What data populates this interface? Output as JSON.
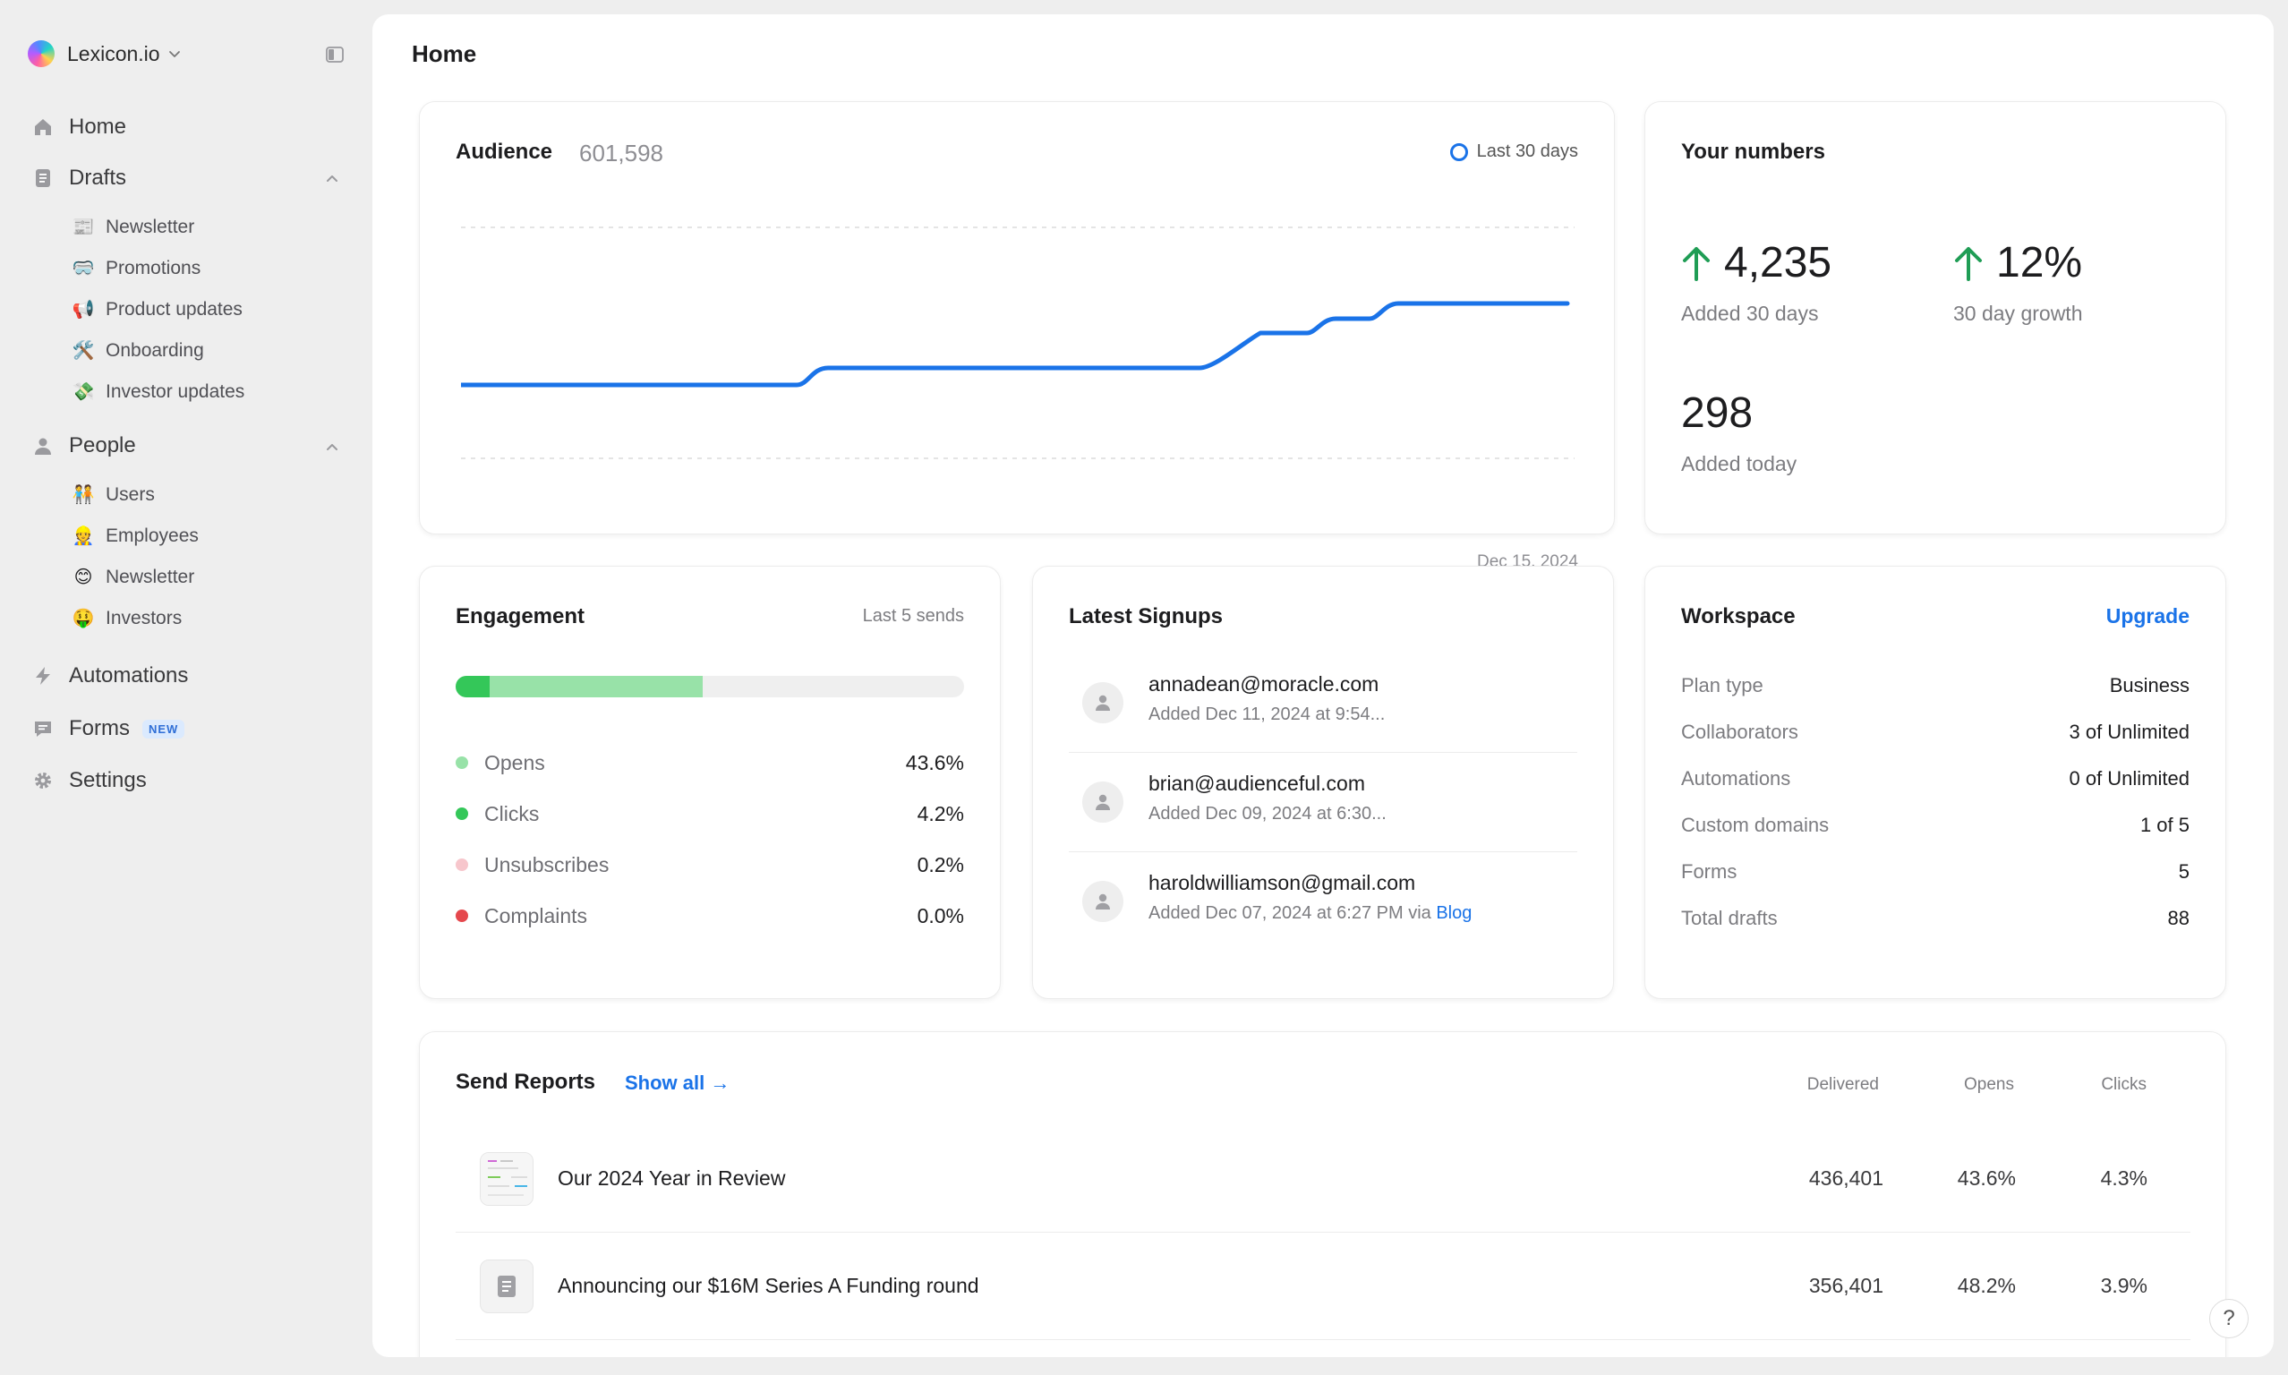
{
  "workspace": {
    "name": "Lexicon.io",
    "logo_icon": "gradient-orb-icon"
  },
  "sidebar": {
    "nav": {
      "home": {
        "label": "Home",
        "icon": "home-icon"
      },
      "drafts": {
        "label": "Drafts",
        "icon": "document-icon",
        "items": [
          {
            "emoji": "📰",
            "label": "Newsletter"
          },
          {
            "emoji": "🥽",
            "label": "Promotions"
          },
          {
            "emoji": "📢",
            "label": "Product updates"
          },
          {
            "emoji": "🛠️",
            "label": "Onboarding"
          },
          {
            "emoji": "💸",
            "label": "Investor updates"
          }
        ]
      },
      "people": {
        "label": "People",
        "icon": "person-icon",
        "items": [
          {
            "emoji": "🧑‍🤝‍🧑",
            "label": "Users"
          },
          {
            "emoji": "👷",
            "label": "Employees"
          },
          {
            "emoji": "😊",
            "label": "Newsletter"
          },
          {
            "emoji": "🤑",
            "label": "Investors"
          }
        ]
      },
      "automations": {
        "label": "Automations",
        "icon": "bolt-icon"
      },
      "forms": {
        "label": "Forms",
        "icon": "form-icon",
        "badge": "NEW"
      },
      "settings": {
        "label": "Settings",
        "icon": "gear-icon"
      }
    }
  },
  "page": {
    "title": "Home"
  },
  "audience": {
    "title": "Audience",
    "count": "601,598",
    "range_label": "Last 30 days",
    "end_date": "Dec 15, 2024",
    "line_color": "#1a73e8"
  },
  "numbers": {
    "title": "Your numbers",
    "added_30": {
      "value": "4,235",
      "label": "Added 30 days"
    },
    "growth": {
      "value": "12%",
      "label": "30 day growth"
    },
    "added_today": {
      "value": "298",
      "label": "Added today"
    },
    "up_color": "#1f9d55"
  },
  "engagement": {
    "title": "Engagement",
    "range": "Last 5 sends",
    "rows": [
      {
        "label": "Opens",
        "value": "43.6%",
        "color": "#98e2a8"
      },
      {
        "label": "Clicks",
        "value": "4.2%",
        "color": "#34c759"
      },
      {
        "label": "Unsubscribes",
        "value": "0.2%",
        "color": "#f7c6cc"
      },
      {
        "label": "Complaints",
        "value": "0.0%",
        "color": "#e5484d"
      }
    ]
  },
  "signups": {
    "title": "Latest Signups",
    "items": [
      {
        "email": "annadean@moracle.com",
        "meta": "Added Dec 11, 2024 at 9:54..."
      },
      {
        "email": "brian@audienceful.com",
        "meta": "Added Dec 09, 2024 at 6:30..."
      },
      {
        "email": "haroldwilliamson@gmail.com",
        "meta": "Added Dec 07, 2024 at 6:27 PM via ",
        "link": "Blog"
      }
    ]
  },
  "workspace_card": {
    "title": "Workspace",
    "upgrade": "Upgrade",
    "rows": [
      {
        "key": "Plan type",
        "value": "Business"
      },
      {
        "key": "Collaborators",
        "value": "3 of Unlimited"
      },
      {
        "key": "Automations",
        "value": "0 of Unlimited"
      },
      {
        "key": "Custom domains",
        "value": "1 of 5"
      },
      {
        "key": "Forms",
        "value": "5"
      },
      {
        "key": "Total drafts",
        "value": "88"
      }
    ]
  },
  "reports": {
    "title": "Send Reports",
    "show_all": "Show all →",
    "columns": [
      "Delivered",
      "Opens",
      "Clicks"
    ],
    "rows": [
      {
        "title": "Our 2024 Year in Review",
        "delivered": "436,401",
        "opens": "43.6%",
        "clicks": "4.3%",
        "thumb": "newsletter-thumbnail"
      },
      {
        "title": "Announcing our $16M Series A Funding round",
        "delivered": "356,401",
        "opens": "48.2%",
        "clicks": "3.9%",
        "thumb": "document-icon"
      }
    ]
  },
  "help": {
    "label": "?"
  }
}
